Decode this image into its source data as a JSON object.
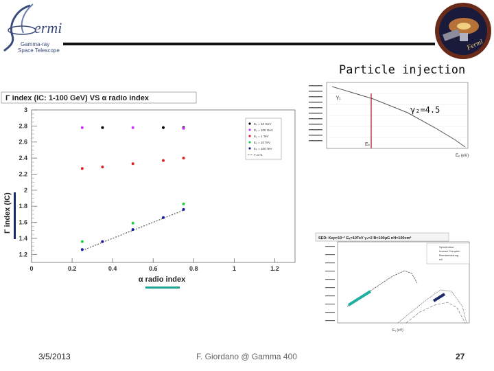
{
  "header": {
    "logo_word": "ermi",
    "logo_line1": "Gamma-ray",
    "logo_line2": "Space Telescope",
    "badge_text": "Fermi"
  },
  "slide": {
    "subtitle": "Particle injection"
  },
  "footer": {
    "date": "3/5/2013",
    "author": "F. Giordano @ Gamma 400",
    "page": "27"
  },
  "chart_data": [
    {
      "type": "scatter",
      "title": "Γ index (IC: 1-100 GeV) VS α radio index",
      "xlabel": "α radio index",
      "ylabel": "Γ index (IC)",
      "xlim": [
        0,
        1.3
      ],
      "ylim": [
        1.1,
        3.0
      ],
      "xticks": [
        "0",
        "0.2",
        "0.4",
        "0.6",
        "0.8",
        "1",
        "1.2"
      ],
      "yticks": [
        "1.2",
        "1.4",
        "1.6",
        "1.8",
        "2",
        "2.2",
        "2.4",
        "2.6",
        "2.8",
        "3"
      ],
      "legend_position": "top-right",
      "series": [
        {
          "name": "Eₚ = 10 GeV",
          "color": "#000000",
          "x": [
            0.35,
            0.65,
            0.75
          ],
          "y": [
            2.78,
            2.78,
            2.78
          ]
        },
        {
          "name": "Eₚ = 100 GeV",
          "color": "#cc33ff",
          "x": [
            0.25,
            0.5,
            0.75
          ],
          "y": [
            2.78,
            2.78,
            2.77
          ]
        },
        {
          "name": "Eₚ = 1 TeV",
          "color": "#dd2222",
          "x": [
            0.25,
            0.35,
            0.5,
            0.65,
            0.75
          ],
          "y": [
            2.27,
            2.29,
            2.33,
            2.37,
            2.4
          ]
        },
        {
          "name": "Eₚ = 10 TeV",
          "color": "#22cc44",
          "x": [
            0.25,
            0.5,
            0.75
          ],
          "y": [
            1.36,
            1.59,
            1.83
          ]
        },
        {
          "name": "Eₚ = 100 TeV",
          "color": "#1a1aa0",
          "x": [
            0.25,
            0.35,
            0.5,
            0.65,
            0.75
          ],
          "y": [
            1.26,
            1.36,
            1.51,
            1.66,
            1.76
          ]
        }
      ],
      "fit_line": {
        "name": "Γ=α+1",
        "x": [
          0.25,
          0.75
        ],
        "y": [
          1.25,
          1.75
        ]
      }
    },
    {
      "type": "line",
      "title": "",
      "annotation_gamma": "γ₁",
      "annotation_gamma2": "γ₂=4.5",
      "annotation_e": "Eₖ",
      "xlabel": "Eₑ (eV)"
    },
    {
      "type": "line",
      "title": "SED: Kep=10⁻³ Eₖ=10TeV γ₁=2 B=100μG nH=100cm²",
      "legend": [
        "Synchrotron",
        "Inverse Compton",
        "Bremsstrahlung",
        "π0"
      ],
      "xlabel": "Eᵧ (eV)"
    }
  ]
}
